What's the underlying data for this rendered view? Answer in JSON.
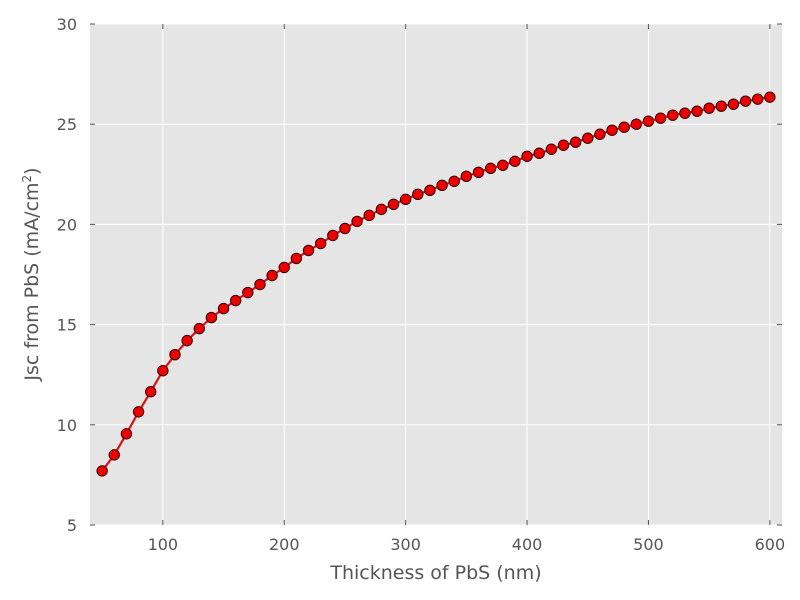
{
  "chart_data": {
    "type": "line",
    "xlabel": "Thickness of PbS (nm)",
    "ylabel_main": "Jsc from PbS (mA/cm",
    "ylabel_sup": "2",
    "ylabel_end": ")",
    "xlim": [
      40,
      610
    ],
    "ylim": [
      5,
      30
    ],
    "xticks": [
      100,
      200,
      300,
      400,
      500,
      600
    ],
    "yticks": [
      5,
      10,
      15,
      20,
      25,
      30
    ],
    "grid": true,
    "background": "#e5e5e5",
    "line_color": "#dd1111",
    "marker_color": "#ee0000",
    "marker_edge": "#330000",
    "series": [
      {
        "x": [
          50,
          60,
          70,
          80,
          90,
          100,
          110,
          120,
          130,
          140,
          150,
          160,
          170,
          180,
          190,
          200,
          210,
          220,
          230,
          240,
          250,
          260,
          270,
          280,
          290,
          300,
          310,
          320,
          330,
          340,
          350,
          360,
          370,
          380,
          390,
          400,
          410,
          420,
          430,
          440,
          450,
          460,
          470,
          480,
          490,
          500,
          510,
          520,
          530,
          540,
          550,
          560,
          570,
          580,
          590,
          600
        ],
        "y": [
          7.7,
          8.5,
          9.55,
          10.65,
          11.65,
          12.7,
          13.5,
          14.2,
          14.8,
          15.35,
          15.8,
          16.2,
          16.6,
          17.0,
          17.45,
          17.85,
          18.3,
          18.7,
          19.05,
          19.45,
          19.8,
          20.15,
          20.45,
          20.75,
          21.0,
          21.25,
          21.5,
          21.7,
          21.95,
          22.15,
          22.4,
          22.6,
          22.8,
          22.95,
          23.15,
          23.4,
          23.55,
          23.75,
          23.95,
          24.1,
          24.3,
          24.5,
          24.7,
          24.85,
          25.0,
          25.15,
          25.3,
          25.45,
          25.55,
          25.65,
          25.8,
          25.9,
          26.0,
          26.15,
          26.25,
          26.35
        ]
      }
    ]
  }
}
